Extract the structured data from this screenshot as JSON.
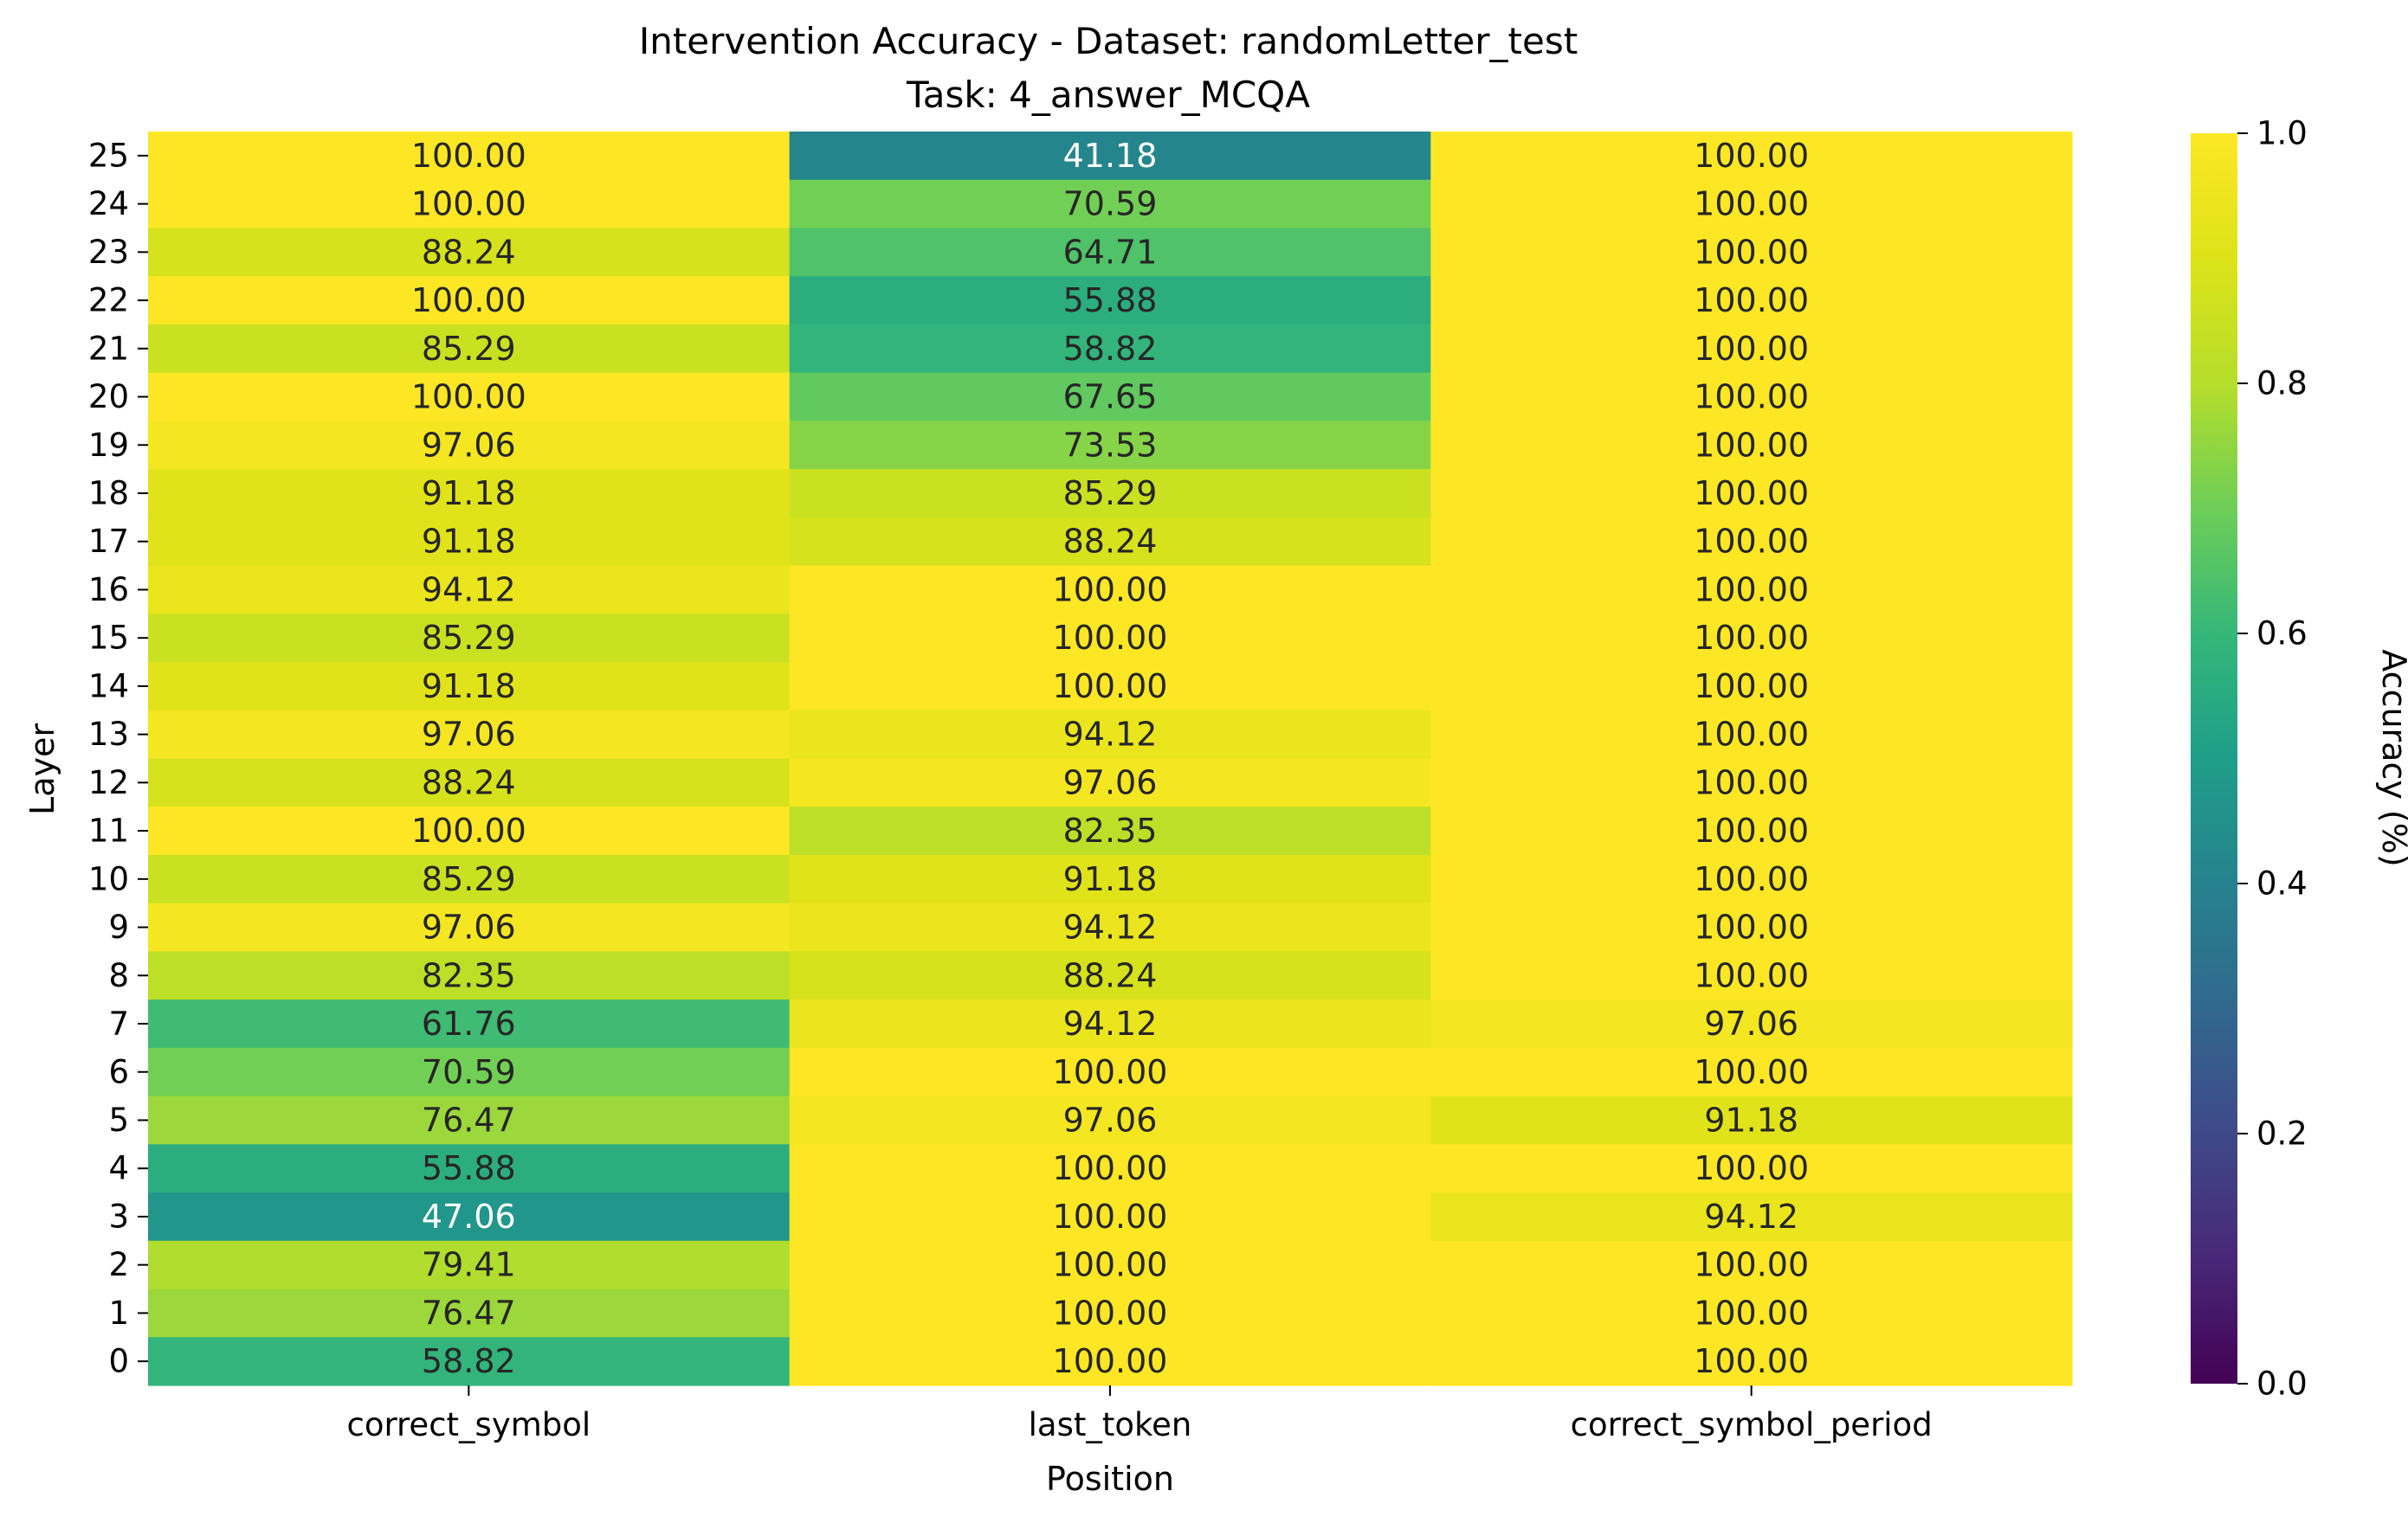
{
  "chart_data": {
    "type": "heatmap",
    "title": "Intervention Accuracy - Dataset: randomLetter_test",
    "subtitle": "Task: 4_answer_MCQA",
    "xlabel": "Position",
    "ylabel": "Layer",
    "x_categories": [
      "correct_symbol",
      "last_token",
      "correct_symbol_period"
    ],
    "y_categories": [
      "25",
      "24",
      "23",
      "22",
      "21",
      "20",
      "19",
      "18",
      "17",
      "16",
      "15",
      "14",
      "13",
      "12",
      "11",
      "10",
      "9",
      "8",
      "7",
      "6",
      "5",
      "4",
      "3",
      "2",
      "1",
      "0"
    ],
    "values": [
      [
        100.0,
        41.18,
        100.0
      ],
      [
        100.0,
        70.59,
        100.0
      ],
      [
        88.24,
        64.71,
        100.0
      ],
      [
        100.0,
        55.88,
        100.0
      ],
      [
        85.29,
        58.82,
        100.0
      ],
      [
        100.0,
        67.65,
        100.0
      ],
      [
        97.06,
        73.53,
        100.0
      ],
      [
        91.18,
        85.29,
        100.0
      ],
      [
        91.18,
        88.24,
        100.0
      ],
      [
        94.12,
        100.0,
        100.0
      ],
      [
        85.29,
        100.0,
        100.0
      ],
      [
        91.18,
        100.0,
        100.0
      ],
      [
        97.06,
        94.12,
        100.0
      ],
      [
        88.24,
        97.06,
        100.0
      ],
      [
        100.0,
        82.35,
        100.0
      ],
      [
        85.29,
        91.18,
        100.0
      ],
      [
        97.06,
        94.12,
        100.0
      ],
      [
        82.35,
        88.24,
        100.0
      ],
      [
        61.76,
        94.12,
        97.06
      ],
      [
        70.59,
        100.0,
        100.0
      ],
      [
        76.47,
        97.06,
        91.18
      ],
      [
        55.88,
        100.0,
        100.0
      ],
      [
        47.06,
        100.0,
        94.12
      ],
      [
        79.41,
        100.0,
        100.0
      ],
      [
        76.47,
        100.0,
        100.0
      ],
      [
        58.82,
        100.0,
        100.0
      ]
    ],
    "value_format": "2 decimals",
    "colormap": "viridis",
    "colorbar": {
      "label": "Accuracy (%)",
      "range": [
        0.0,
        1.0
      ],
      "ticks": [
        "0.0",
        "0.2",
        "0.4",
        "0.6",
        "0.8",
        "1.0"
      ]
    },
    "grid": false
  }
}
